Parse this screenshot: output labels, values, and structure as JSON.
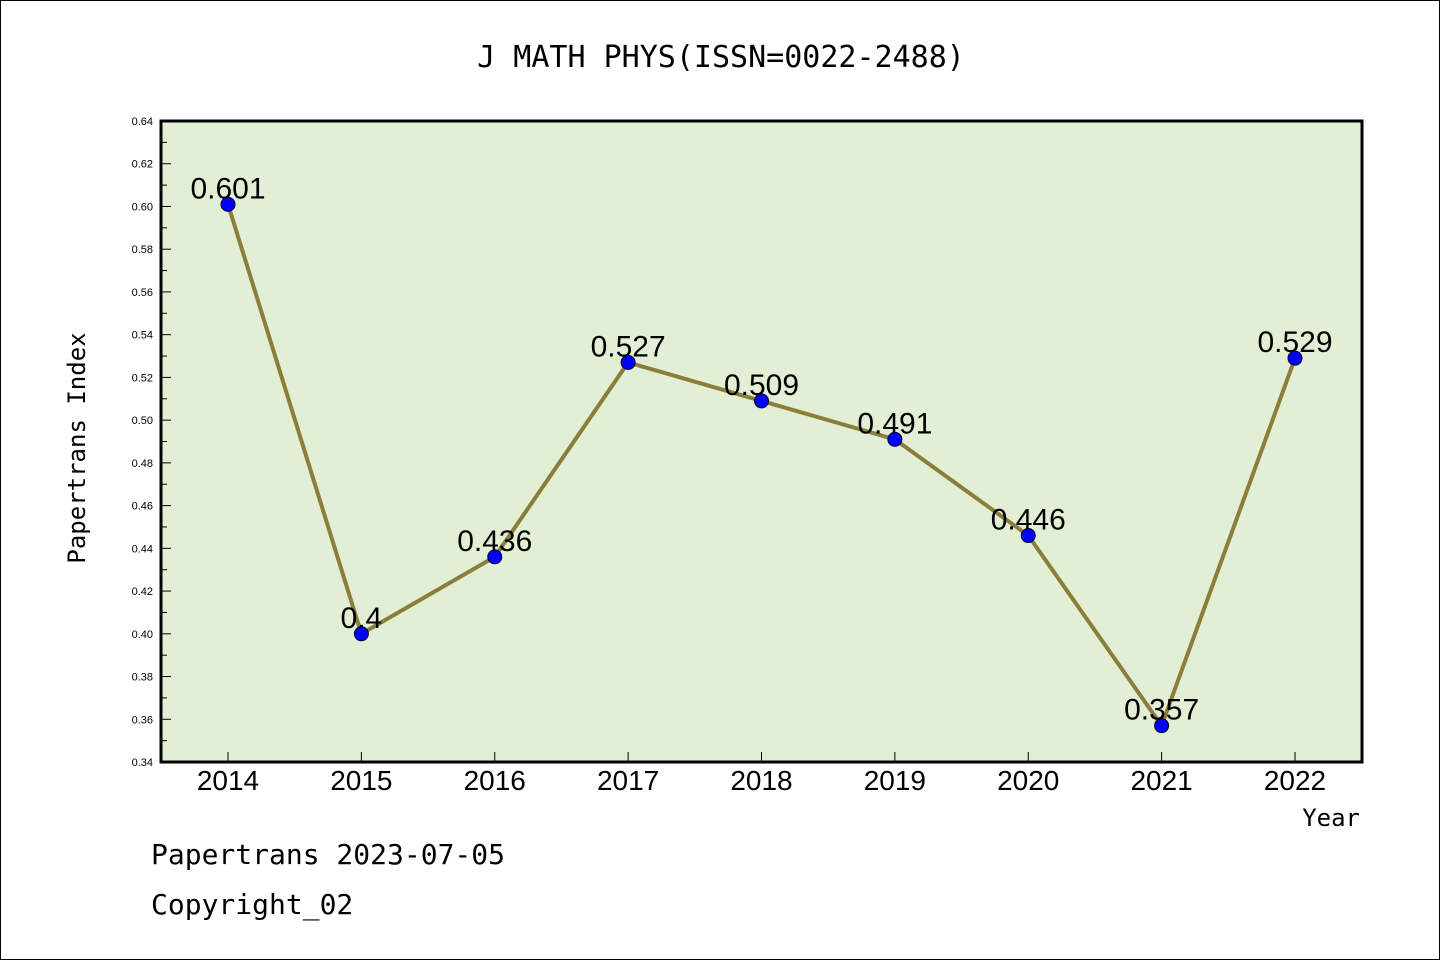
{
  "chart_data": {
    "type": "line",
    "title": "J MATH PHYS(ISSN=0022-2488)",
    "xlabel": "Year",
    "ylabel": "Papertrans Index",
    "categories": [
      "2014",
      "2015",
      "2016",
      "2017",
      "2018",
      "2019",
      "2020",
      "2021",
      "2022"
    ],
    "values": [
      0.601,
      0.4,
      0.436,
      0.527,
      0.509,
      0.491,
      0.446,
      0.357,
      0.529
    ],
    "value_labels": [
      "0.601",
      "0.4",
      "0.436",
      "0.527",
      "0.509",
      "0.491",
      "0.446",
      "0.357",
      "0.529"
    ],
    "ylim": [
      0.34,
      0.64
    ],
    "yticks": [
      "0.34",
      "0.36",
      "0.38",
      "0.40",
      "0.42",
      "0.44",
      "0.46",
      "0.48",
      "0.50",
      "0.52",
      "0.54",
      "0.56",
      "0.58",
      "0.60",
      "0.62",
      "0.64"
    ],
    "grid": false,
    "colors": {
      "plot_background": "#e2efd5",
      "line": "#8b7d3a",
      "marker": "#0000ff"
    }
  },
  "footer": {
    "source_line": "Papertrans 2023-07-05",
    "copyright_line": "Copyright_02"
  }
}
